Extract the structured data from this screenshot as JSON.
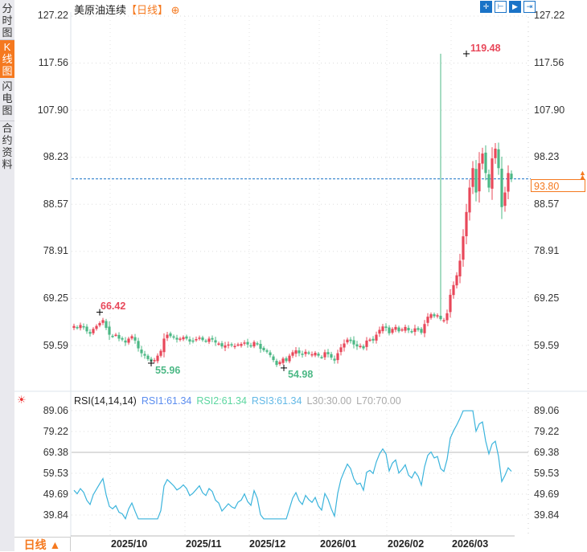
{
  "sidebar": {
    "tabs": [
      {
        "label": "分时图",
        "active": false
      },
      {
        "label": "K线图",
        "active": true
      },
      {
        "label": "闪电图",
        "active": false
      },
      {
        "label": "合约资料",
        "active": false
      }
    ]
  },
  "header": {
    "instrument": "美原油连续",
    "period": "【日线】",
    "add_icon": "⊕",
    "tools": [
      "crosshair-icon",
      "range-icon",
      "play-icon",
      "goto-end-icon"
    ]
  },
  "price_axis": {
    "ticks": [
      "127.22",
      "117.56",
      "107.90",
      "98.23",
      "88.57",
      "78.91",
      "69.25",
      "59.59"
    ],
    "last_price": "93.80",
    "last_price_color": "#f5791f"
  },
  "rsi_panel": {
    "title": "RSI(14,14,14)",
    "rsi1": "RSI1:61.34",
    "rsi2": "RSI2:61.34",
    "rsi3": "RSI3:61.34",
    "l30": "L30:30.00",
    "l70": "L70:70.00",
    "ticks": [
      "89.06",
      "79.22",
      "69.38",
      "59.53",
      "49.69",
      "39.84"
    ]
  },
  "x_axis": {
    "labels": [
      "2025/10",
      "2025/11",
      "2025/12",
      "2026/01",
      "2026/02",
      "2026/03"
    ]
  },
  "period_button": "日线 ▲",
  "annotations": {
    "high1": "66.42",
    "low1": "55.96",
    "low2": "54.98",
    "high2": "119.48"
  },
  "colors": {
    "up": "#e8485a",
    "down": "#4cb885",
    "rsi_line": "#3bb4dc",
    "accent": "#f5791f",
    "rsi1": "#5b8def",
    "rsi2": "#5cd6a0",
    "rsi3": "#62b8e6",
    "dim": "#aaaaaa"
  },
  "chart_data": [
    {
      "type": "candlestick",
      "title": "美原油连续【日线】",
      "ylim": [
        54,
        127.22
      ],
      "y_ticks": [
        127.22,
        117.56,
        107.9,
        98.23,
        88.57,
        78.91,
        69.25,
        59.59
      ],
      "x_labels": [
        "2025/10",
        "2025/11",
        "2025/12",
        "2026/01",
        "2026/02",
        "2026/03"
      ],
      "last_price": 93.8,
      "annotations": [
        {
          "label": "66.42",
          "type": "high"
        },
        {
          "label": "55.96",
          "type": "low"
        },
        {
          "label": "54.98",
          "type": "low"
        },
        {
          "label": "119.48",
          "type": "high"
        }
      ],
      "closes": [
        63.6,
        63.2,
        63.8,
        63.4,
        62.5,
        62.0,
        63.0,
        63.6,
        64.2,
        64.8,
        63.2,
        61.8,
        61.5,
        61.8,
        61.0,
        60.8,
        60.2,
        61.0,
        61.5,
        60.6,
        59.0,
        58.0,
        57.5,
        56.8,
        56.3,
        56.6,
        57.5,
        58.5,
        61.0,
        61.8,
        61.5,
        61.2,
        60.8,
        61.0,
        61.3,
        61.0,
        60.4,
        60.6,
        60.9,
        61.2,
        60.7,
        60.5,
        61.0,
        60.8,
        60.2,
        60.0,
        59.4,
        59.6,
        59.8,
        59.6,
        59.5,
        59.8,
        59.9,
        60.2,
        59.8,
        59.6,
        60.3,
        59.9,
        58.9,
        58.6,
        58.3,
        57.6,
        56.6,
        55.6,
        56.2,
        56.9,
        56.4,
        57.5,
        58.2,
        58.6,
        58.0,
        57.7,
        58.3,
        58.0,
        57.8,
        58.1,
        57.5,
        57.2,
        58.2,
        57.8,
        57.1,
        56.5,
        58.0,
        59.2,
        60.0,
        60.8,
        60.5,
        59.8,
        59.4,
        59.5,
        59.0,
        60.6,
        60.8,
        60.6,
        61.8,
        62.8,
        63.5,
        63.2,
        62.1,
        63.0,
        63.4,
        62.5,
        62.9,
        63.4,
        62.7,
        62.5,
        63.1,
        62.8,
        62.2,
        64.0,
        65.5,
        66.0,
        65.6,
        65.8,
        65.0,
        64.8,
        66.2,
        70.0,
        72.0,
        74.0,
        77.0,
        82.0,
        87.0,
        92.0,
        96.0,
        91.0,
        97.0,
        99.0,
        95.0,
        92.0,
        98.0,
        100.0,
        96.0,
        88.0,
        91.0,
        95.0,
        93.8
      ],
      "rsi": {
        "ylim": [
          35,
          92
        ],
        "y_ticks": [
          89.06,
          79.22,
          69.38,
          59.53,
          49.69,
          39.84
        ],
        "reference_lines": [
          30,
          70
        ],
        "last": 61.34
      }
    }
  ]
}
